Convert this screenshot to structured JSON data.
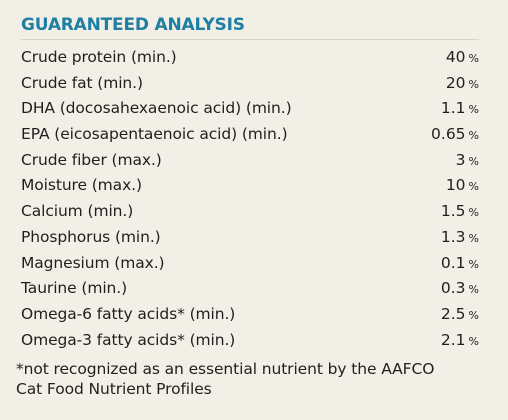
{
  "heading": "GUARANTEED ANALYSIS",
  "unit_symbol": "%",
  "nutrients": [
    {
      "label": "Crude protein (min.)",
      "value": "40"
    },
    {
      "label": "Crude fat (min.)",
      "value": "20"
    },
    {
      "label": "DHA (docosahexaenoic acid) (min.)",
      "value": "1.1"
    },
    {
      "label": "EPA (eicosapentaenoic acid) (min.)",
      "value": "0.65"
    },
    {
      "label": "Crude fiber (max.)",
      "value": "3"
    },
    {
      "label": "Moisture (max.)",
      "value": "10"
    },
    {
      "label": "Calcium (min.)",
      "value": "1.5"
    },
    {
      "label": "Phosphorus (min.)",
      "value": "1.3"
    },
    {
      "label": "Magnesium (max.)",
      "value": "0.1"
    },
    {
      "label": "Taurine (min.)",
      "value": "0.3"
    },
    {
      "label": "Omega-6 fatty acids* (min.)",
      "value": "2.5"
    },
    {
      "label": "Omega-3 fatty acids* (min.)",
      "value": "2.1"
    }
  ],
  "footnote_lines": [
    "*not recognized as an essential nutrient by the AAFCO",
    "Cat Food Nutrient Profiles"
  ],
  "colors": {
    "background": "#f2f0e6",
    "heading": "#1f7fa3",
    "text": "#1f1f1f",
    "rule": "#d8d4c2"
  }
}
